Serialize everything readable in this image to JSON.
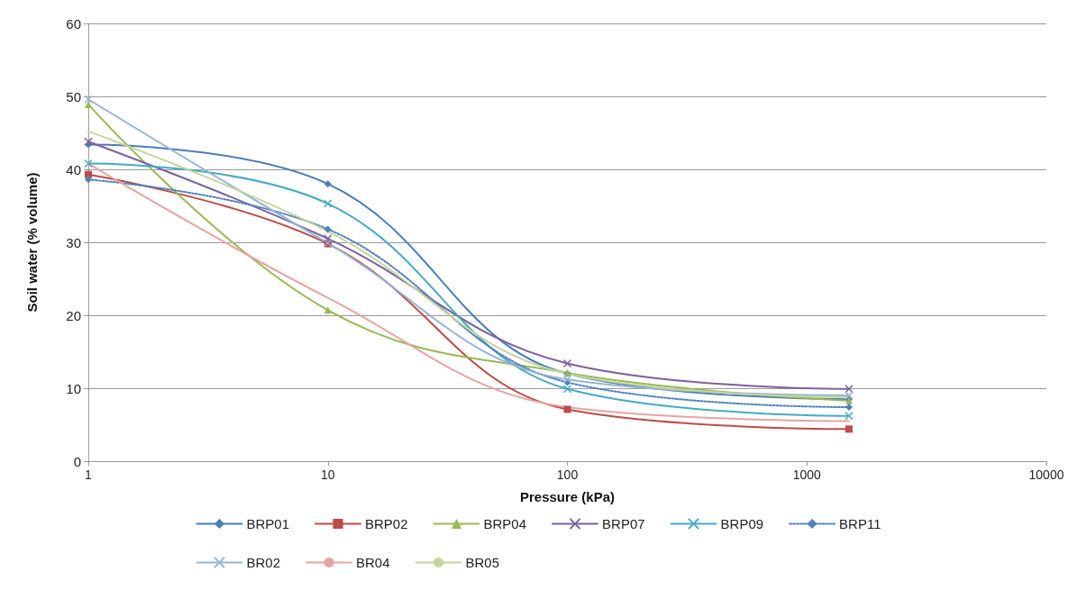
{
  "chart_data": {
    "type": "line",
    "xlabel": "Pressure (kPa)",
    "ylabel": "Soil water (% volume)",
    "log": "x",
    "xlim": [
      1,
      10000
    ],
    "xticks": [
      1,
      10,
      100,
      1000,
      10000
    ],
    "ylim": [
      0,
      60
    ],
    "yticks": [
      0,
      10,
      20,
      30,
      40,
      50,
      60
    ],
    "grid": "y",
    "legend": "bottom",
    "x": [
      1,
      10,
      100,
      1500
    ],
    "series": [
      {
        "name": "BRP01",
        "color": "#4a7ebb",
        "marker": "diamond",
        "values": [
          43.4,
          38,
          12,
          8.5
        ]
      },
      {
        "name": "BRP02",
        "color": "#be4b48",
        "marker": "square",
        "values": [
          39.3,
          29.8,
          7.1,
          4.4
        ]
      },
      {
        "name": "BRP04",
        "color": "#98b954",
        "marker": "triangle",
        "values": [
          48.9,
          20.7,
          12.1,
          8.3
        ]
      },
      {
        "name": "BRP07",
        "color": "#7d60a0",
        "marker": "cross",
        "values": [
          43.8,
          30.5,
          13.4,
          9.9
        ]
      },
      {
        "name": "BRP09",
        "color": "#46aac5",
        "marker": "cross",
        "values": [
          40.8,
          35.3,
          9.9,
          6.2
        ]
      },
      {
        "name": "BRP11",
        "color": "#4f81bd",
        "marker": "diamond",
        "line_style": "dotted",
        "values": [
          38.6,
          31.8,
          10.8,
          7.4
        ]
      },
      {
        "name": "BR02",
        "color": "#95b3d7",
        "marker": "cross",
        "values": [
          49.6,
          29.9,
          11.2,
          9.0
        ]
      },
      {
        "name": "BR04",
        "color": "#e6a5a4",
        "marker": "none",
        "values": [
          40.8,
          22.4,
          7.4,
          5.5
        ]
      },
      {
        "name": "BR05",
        "color": "#c3d69b",
        "marker": "none",
        "values": [
          45.2,
          31.5,
          12.0,
          8.8
        ]
      }
    ]
  }
}
